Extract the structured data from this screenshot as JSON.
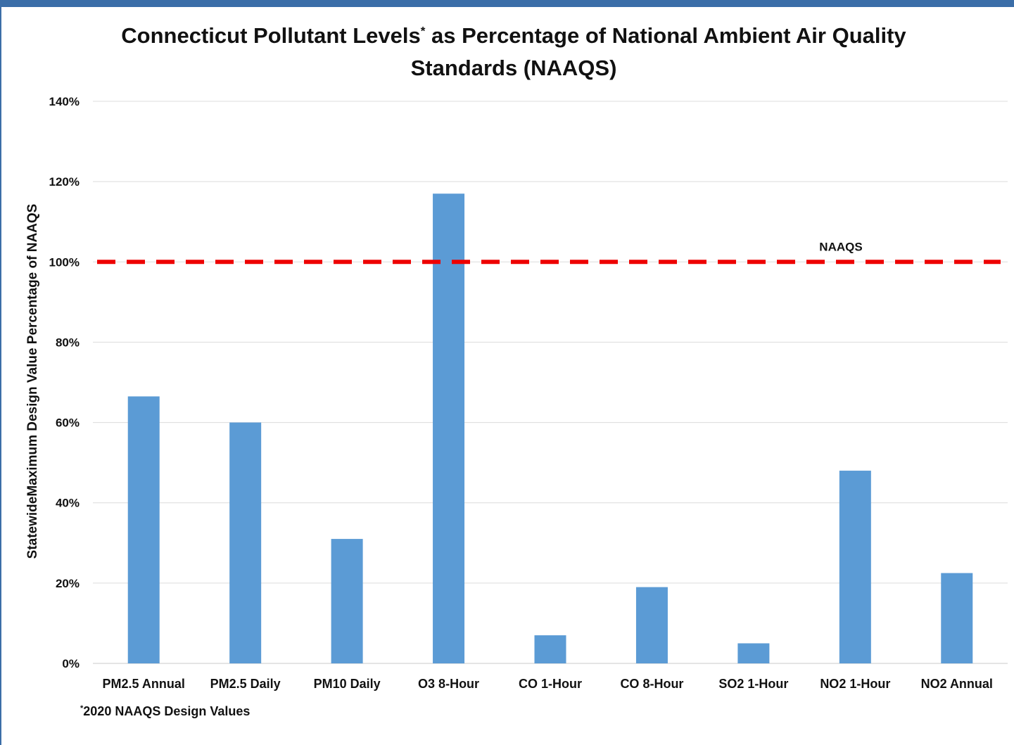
{
  "chart_data": {
    "type": "bar",
    "title_main": "Connecticut Pollutant Levels",
    "title_marker": "*",
    "title_rest": " as Percentage of National Ambient Air Quality Standards (NAAQS)",
    "ylabel": "StatewideMaximum Design Value Percentage of NAAQS",
    "xlabel": "",
    "categories": [
      "PM2.5 Annual",
      "PM2.5 Daily",
      "PM10 Daily",
      "O3 8-Hour",
      "CO 1-Hour",
      "CO 8-Hour",
      "SO2 1-Hour",
      "NO2 1-Hour",
      "NO2 Annual"
    ],
    "values": [
      66.5,
      60,
      31,
      117,
      7,
      19,
      5,
      48,
      22.5
    ],
    "ylim": [
      0,
      140
    ],
    "yticks": [
      0,
      20,
      40,
      60,
      80,
      100,
      120,
      140
    ],
    "ytick_labels": [
      "0%",
      "20%",
      "40%",
      "60%",
      "80%",
      "100%",
      "120%",
      "140%"
    ],
    "bar_color": "#5b9bd5",
    "grid": true,
    "reference_line": {
      "value": 100,
      "label": "NAAQS",
      "color": "#ee0000",
      "style": "dashed"
    },
    "footnote_marker": "*",
    "footnote": "2020 NAAQS Design Values"
  }
}
